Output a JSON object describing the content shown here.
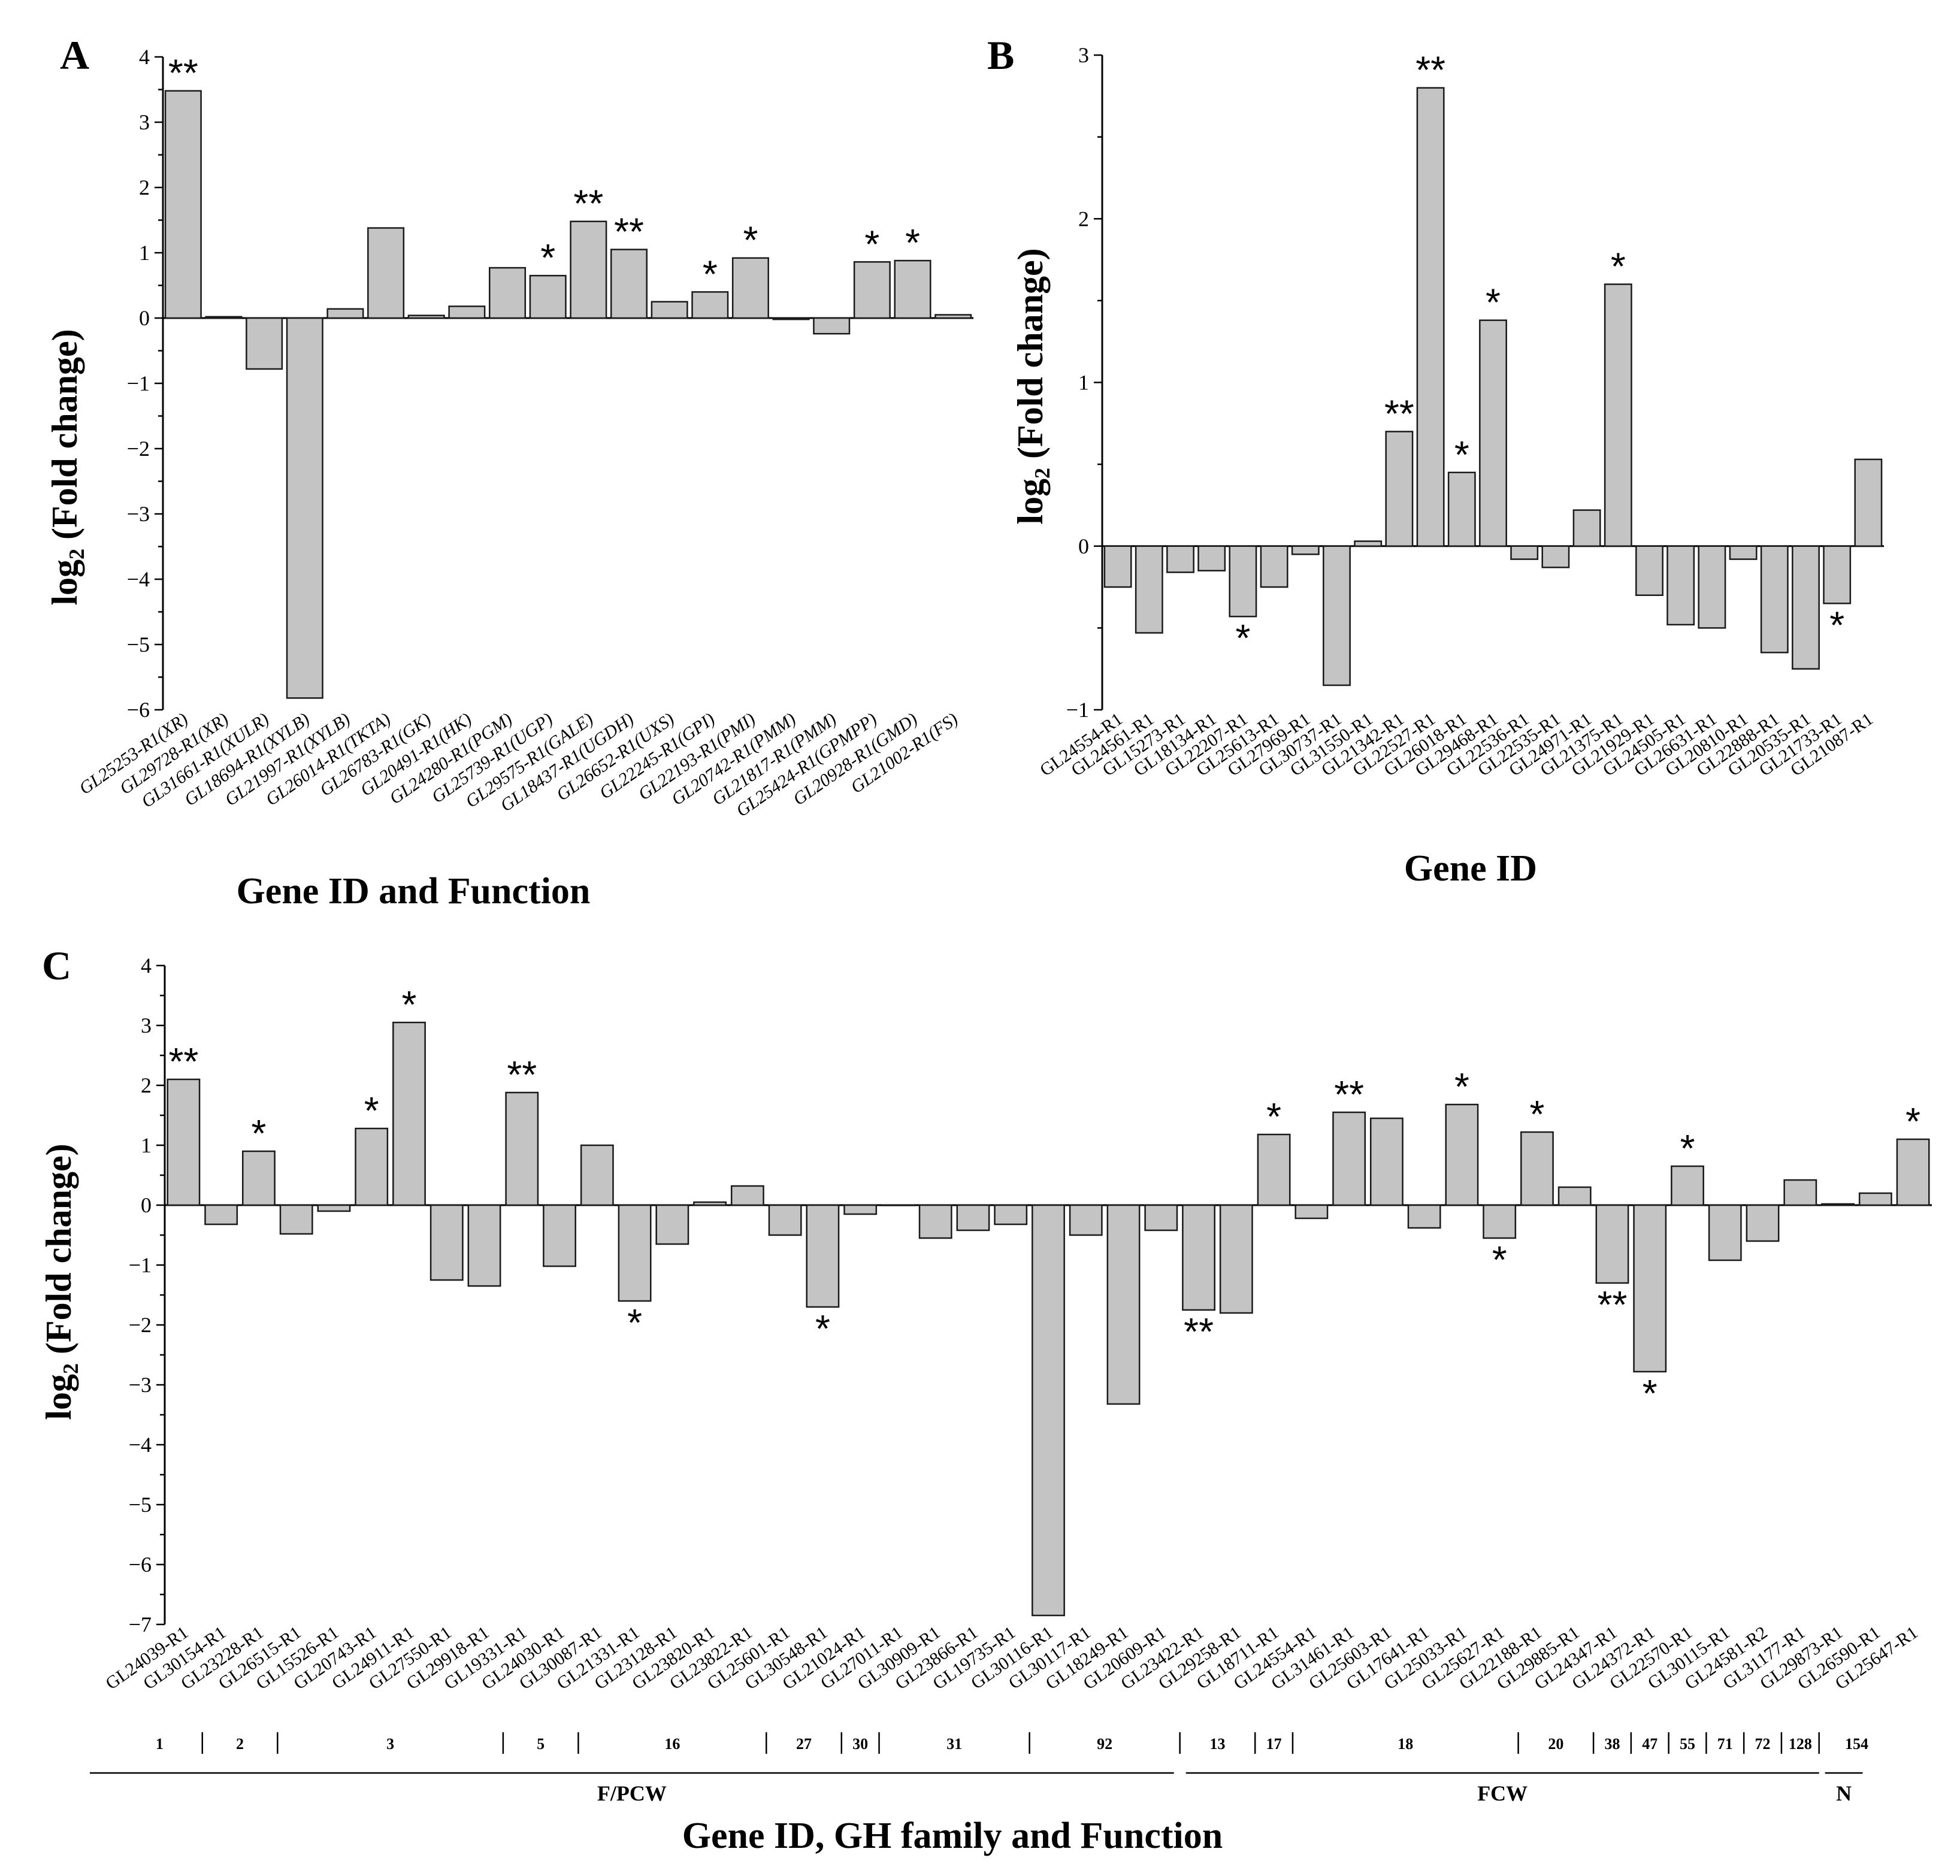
{
  "chart_data": [
    {
      "panel": "A",
      "type": "bar",
      "xlabel": "Gene ID and Function",
      "ylabel": "log₂ (Fold change)",
      "ylim": [
        -6,
        4
      ],
      "yticks": [
        "4",
        "3",
        "2",
        "1",
        "0",
        "-1",
        "-2",
        "-3",
        "-4",
        "-5",
        "-6"
      ],
      "categories": [
        "GL25253-R1(XR)",
        "GL29728-R1(XR)",
        "GL31661-R1(XULR)",
        "GL18694-R1(XYLB)",
        "GL21997-R1(XYLB)",
        "GL26014-R1(TKTA)",
        "GL26783-R1(GK)",
        "GL20491-R1(HK)",
        "GL24280-R1(PGM)",
        "GL25739-R1(UGP)",
        "GL29575-R1(GALE)",
        "GL18437-R1(UGDH)",
        "GL26652-R1(UXS)",
        "GL22245-R1(GPI)",
        "GL22193-R1(PMI)",
        "GL20742-R1(PMM)",
        "GL21817-R1(PMM)",
        "GL25424-R1(GPMPP)",
        "GL20928-R1(GMD)",
        "GL21002-R1(FS)"
      ],
      "values": [
        3.48,
        0.02,
        -0.78,
        -5.82,
        0.14,
        1.38,
        0.04,
        0.18,
        0.77,
        0.65,
        1.48,
        1.05,
        0.25,
        0.4,
        0.92,
        -0.02,
        -0.24,
        0.86,
        0.88,
        0.05
      ],
      "significance": [
        "**",
        "",
        "",
        "",
        "",
        "",
        "",
        "",
        "",
        "*",
        "**",
        "**",
        "",
        "*",
        "*",
        "",
        "",
        "*",
        "*",
        ""
      ]
    },
    {
      "panel": "B",
      "type": "bar",
      "xlabel": "Gene ID",
      "ylabel": "log₂ (Fold change)",
      "ylim": [
        -1,
        3
      ],
      "yticks": [
        "3",
        "2",
        "1",
        "0",
        "-1"
      ],
      "categories": [
        "GL24554-R1",
        "GL24561-R1",
        "GL15273-R1",
        "GL18134-R1",
        "GL22207-R1",
        "GL25613-R1",
        "GL27969-R1",
        "GL30737-R1",
        "GL31550-R1",
        "GL21342-R1",
        "GL22527-R1",
        "GL26018-R1",
        "GL29468-R1",
        "GL22536-R1",
        "GL22535-R1",
        "GL24971-R1",
        "GL21375-R1",
        "GL21929-R1",
        "GL24505-R1",
        "GL26631-R1",
        "GL20810-R1",
        "GL22888-R1",
        "GL20535-R1",
        "GL21733-R1",
        "GL21087-R1"
      ],
      "values": [
        -0.25,
        -0.53,
        -0.16,
        -0.15,
        -0.43,
        -0.25,
        -0.05,
        -0.85,
        0.03,
        0.7,
        2.8,
        0.45,
        1.38,
        -0.08,
        -0.13,
        0.22,
        1.6,
        -0.3,
        -0.48,
        -0.5,
        -0.08,
        -0.65,
        -0.75,
        -0.35,
        0.53
      ],
      "significance": [
        "",
        "",
        "",
        "",
        "*",
        "",
        "",
        "",
        "",
        "**",
        "**",
        "*",
        "*",
        "",
        "",
        "",
        "*",
        "",
        "",
        "",
        "",
        "",
        "",
        "*",
        ""
      ]
    },
    {
      "panel": "C",
      "type": "bar",
      "xlabel": "Gene ID, GH family and Function",
      "ylabel": "log₂ (Fold change)",
      "ylim": [
        -7,
        4
      ],
      "yticks": [
        "4",
        "3",
        "2",
        "1",
        "0",
        "-1",
        "-2",
        "-3",
        "-4",
        "-5",
        "-6",
        "-7"
      ],
      "categories": [
        "GL24039-R1",
        "GL30154-R1",
        "GL23228-R1",
        "GL26515-R1",
        "GL15526-R1",
        "GL20743-R1",
        "GL24911-R1",
        "GL27550-R1",
        "GL29918-R1",
        "GL19331-R1",
        "GL24030-R1",
        "GL30087-R1",
        "GL21331-R1",
        "GL23128-R1",
        "GL23820-R1",
        "GL23822-R1",
        "GL25601-R1",
        "GL30548-R1",
        "GL21024-R1",
        "GL27011-R1",
        "GL30909-R1",
        "GL23866-R1",
        "GL19735-R1",
        "GL30116-R1",
        "GL30117-R1",
        "GL18249-R1",
        "GL20609-R1",
        "GL23422-R1",
        "GL29258-R1",
        "GL18711-R1",
        "GL24554-R1",
        "GL31461-R1",
        "GL25603-R1",
        "GL17641-R1",
        "GL25033-R1",
        "GL25627-R1",
        "GL22188-R1",
        "GL29885-R1",
        "GL24347-R1",
        "GL24372-R1",
        "GL22570-R1",
        "GL30115-R1",
        "GL24581-R2",
        "GL31177-R1",
        "GL29873-R1",
        "GL26590-R1",
        "GL25647-R1"
      ],
      "values": [
        2.1,
        -0.32,
        0.9,
        -0.48,
        -0.1,
        1.28,
        3.05,
        -1.25,
        -1.35,
        1.88,
        -1.02,
        1.0,
        -1.6,
        -0.65,
        0.05,
        0.32,
        -0.5,
        -1.7,
        -0.15,
        0,
        -0.55,
        -0.42,
        -0.32,
        -6.85,
        -0.5,
        -3.32,
        -0.42,
        -1.75,
        -1.8,
        1.18,
        -0.22,
        1.55,
        1.45,
        -0.38,
        1.68,
        -0.55,
        1.22,
        0.3,
        -1.3,
        -2.78,
        0.65,
        -0.92,
        -0.6,
        0.42,
        0.02,
        0.2,
        1.1
      ],
      "significance": [
        "**",
        "",
        "*",
        "",
        "",
        "*",
        "*",
        "",
        "",
        "**",
        "",
        "",
        "*",
        "",
        "",
        "",
        "",
        "*",
        "",
        "",
        "",
        "",
        "",
        "",
        "",
        "",
        "",
        "**",
        "",
        "*",
        "",
        "**",
        "",
        "",
        "*",
        "*",
        "*",
        "",
        "**",
        "*",
        "*",
        "",
        "",
        "",
        "",
        "",
        "*"
      ],
      "gh_families": [
        "1",
        "2",
        "3",
        "5",
        "16",
        "27",
        "30",
        "31",
        "92",
        "13",
        "17",
        "18",
        "20",
        "38",
        "47",
        "55",
        "71",
        "72",
        "128",
        "154"
      ],
      "functions": [
        "F/PCW",
        "FCW",
        "N"
      ]
    }
  ]
}
